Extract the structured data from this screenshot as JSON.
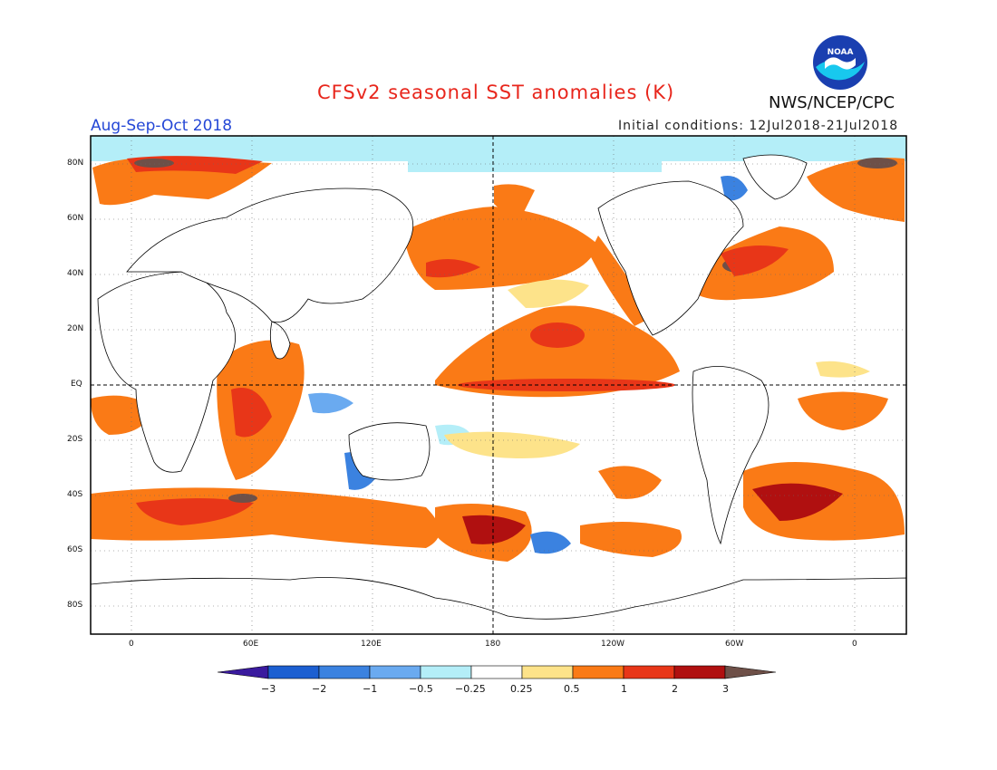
{
  "header": {
    "title": "CFSv2 seasonal SST anomalies (K)",
    "period": "Aug-Sep-Oct 2018",
    "initial_conditions": "Initial conditions: 12Jul2018-21Jul2018",
    "agency": "NWS/NCEP/CPC",
    "logo_text": "NOAA"
  },
  "map": {
    "lat_labels": [
      "80N",
      "60N",
      "40N",
      "20N",
      "EQ",
      "20S",
      "40S",
      "60S",
      "80S"
    ],
    "lon_labels": [
      "0",
      "60E",
      "120E",
      "180",
      "120W",
      "60W",
      "0"
    ]
  },
  "colorbar": {
    "labels": [
      "−3",
      "−2",
      "−1",
      "−0.5",
      "−0.25",
      "0.25",
      "0.5",
      "1",
      "2",
      "3"
    ],
    "colors": [
      "#3a1a9e",
      "#1c5fd1",
      "#3b82e0",
      "#6aaaf0",
      "#b4eef8",
      "#ffffff",
      "#fde38a",
      "#fa7a16",
      "#e83618",
      "#b01010",
      "#6e5048"
    ]
  }
}
